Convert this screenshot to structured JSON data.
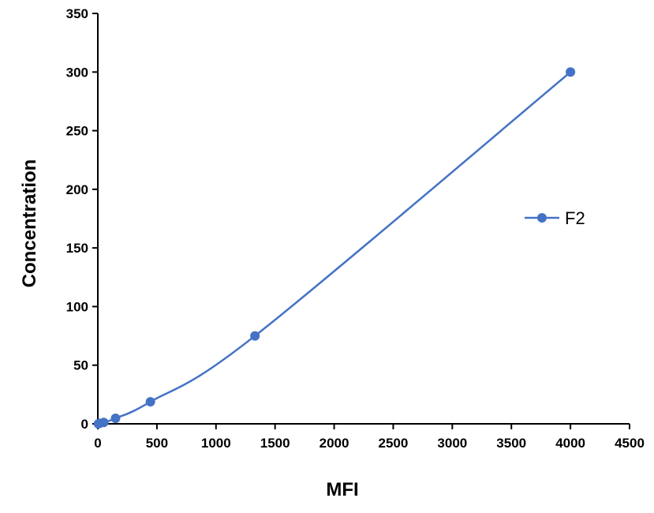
{
  "chart_data": {
    "type": "line",
    "title": "",
    "xlabel": "MFI",
    "ylabel": "Concentration",
    "xlim": [
      0,
      4500
    ],
    "ylim": [
      0,
      350
    ],
    "x_ticks": [
      0,
      500,
      1000,
      1500,
      2000,
      2500,
      3000,
      3500,
      4000,
      4500
    ],
    "y_ticks": [
      0,
      50,
      100,
      150,
      200,
      250,
      300,
      350
    ],
    "grid": false,
    "legend_position": "right",
    "series": [
      {
        "name": "F2",
        "color": "#4472C4",
        "marker": "circle",
        "points": [
          {
            "x": 5,
            "y": 0
          },
          {
            "x": 15,
            "y": 0.4
          },
          {
            "x": 50,
            "y": 1.2
          },
          {
            "x": 150,
            "y": 4.7
          },
          {
            "x": 445,
            "y": 18.8
          },
          {
            "x": 1330,
            "y": 75
          },
          {
            "x": 4000,
            "y": 300
          }
        ]
      }
    ]
  }
}
